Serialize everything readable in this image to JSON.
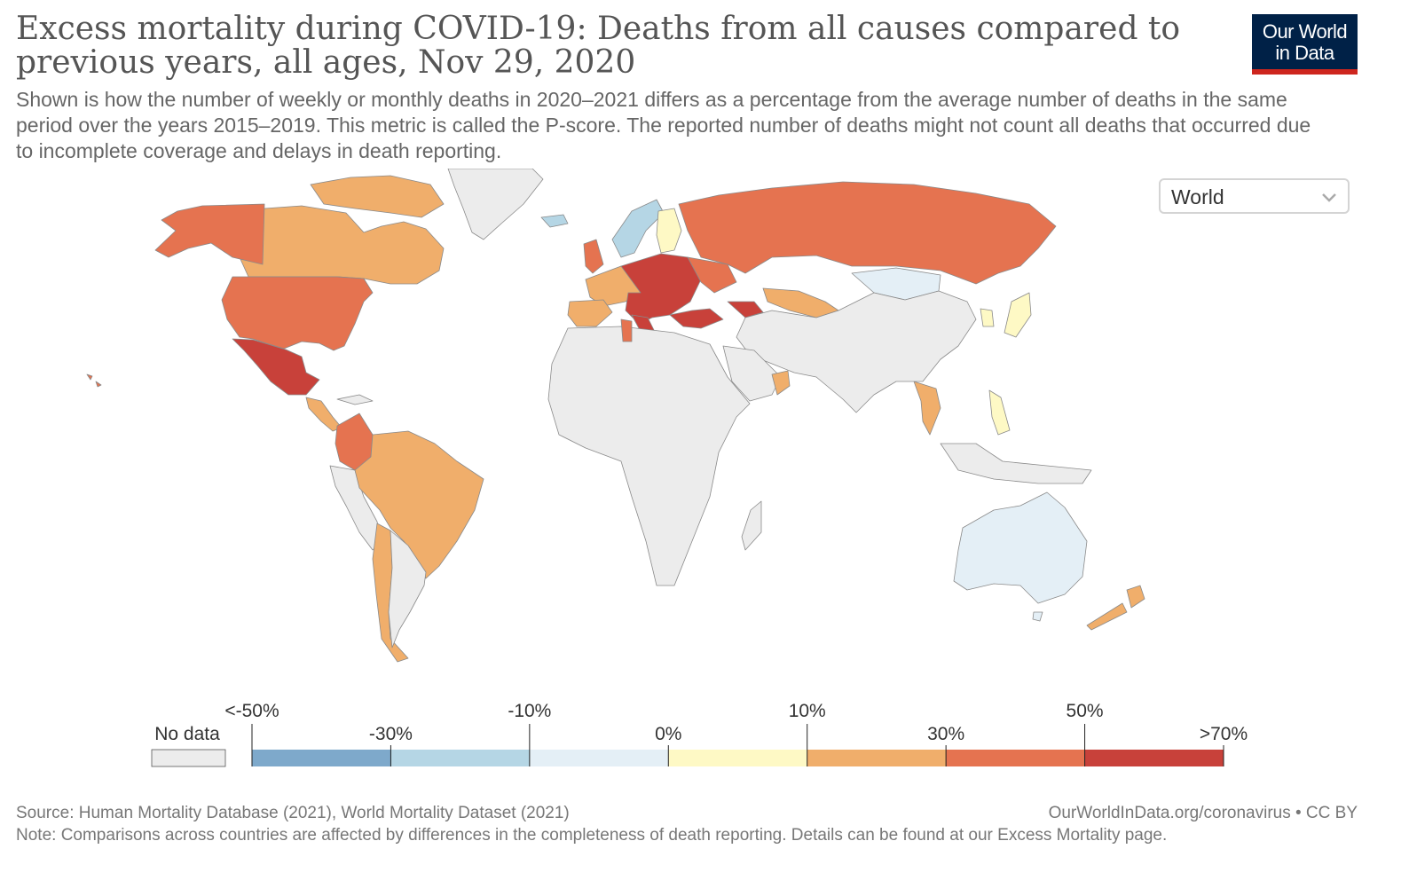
{
  "chart": {
    "title": "Excess mortality during COVID-19: Deaths from all causes compared to previous years, all ages, Nov 29, 2020",
    "subtitle": "Shown is how the number of weekly or monthly deaths in 2020–2021 differs as a percentage from the average number of deaths in the same period over the years 2015–2019. This metric is called the P-score. The reported number of deaths might not count all deaths that occurred due to incomplete coverage and delays in death reporting."
  },
  "logo": {
    "line1": "Our World",
    "line2": "in Data"
  },
  "region_selector": {
    "value": "World",
    "icon": "chevron-down-icon"
  },
  "legend": {
    "no_data_label": "No data",
    "bins": [
      {
        "label": "<-50%",
        "color": "#7ea9cb"
      },
      {
        "label": "-30%",
        "color": "#b5d6e5"
      },
      {
        "label": "-10%",
        "color": "#e4eff6"
      },
      {
        "label": "0%",
        "color": "#fef9c5"
      },
      {
        "label": "10%",
        "color": "#f0ae6b"
      },
      {
        "label": "30%",
        "color": "#e57350"
      },
      {
        "label": "50%",
        "color": "#c8413a"
      },
      {
        "label": ">70%",
        "color": ""
      }
    ],
    "no_data_color": "#ececec"
  },
  "chart_data": {
    "type": "choropleth",
    "date": "Nov 29, 2020",
    "metric": "P-score (%)",
    "categories": [
      "<-50%",
      "-50% to -30%",
      "-30% to -10%",
      "-10% to 0%",
      "0% to 10%",
      "10% to 30%",
      "30% to 50%",
      ">50%"
    ],
    "regions": [
      {
        "name": "Canada",
        "bin": "10% to 30%"
      },
      {
        "name": "United States",
        "bin": "30% to 50%"
      },
      {
        "name": "Mexico",
        "bin": ">50%"
      },
      {
        "name": "Alaska",
        "bin": "30% to 50%"
      },
      {
        "name": "Colombia",
        "bin": "30% to 50%"
      },
      {
        "name": "Brazil",
        "bin": "10% to 30%"
      },
      {
        "name": "Peru",
        "bin": "10% to 30%"
      },
      {
        "name": "Chile",
        "bin": "10% to 30%"
      },
      {
        "name": "Russia",
        "bin": "30% to 50%"
      },
      {
        "name": "Central Europe",
        "bin": ">50%"
      },
      {
        "name": "Western Europe",
        "bin": "10% to 30%"
      },
      {
        "name": "Norway",
        "bin": "-30% to -10%"
      },
      {
        "name": "Finland",
        "bin": "0% to 10%"
      },
      {
        "name": "Iceland",
        "bin": "-30% to -10%"
      },
      {
        "name": "Kazakhstan",
        "bin": "10% to 30%"
      },
      {
        "name": "Mongolia",
        "bin": "-10% to 0%"
      },
      {
        "name": "Japan",
        "bin": "0% to 10%"
      },
      {
        "name": "Thailand",
        "bin": "10% to 30%"
      },
      {
        "name": "Philippines",
        "bin": "0% to 10%"
      },
      {
        "name": "Oman",
        "bin": "10% to 30%"
      },
      {
        "name": "Australia",
        "bin": "-10% to 0%"
      },
      {
        "name": "New Zealand",
        "bin": "10% to 30%"
      },
      {
        "name": "Greenland",
        "bin": "No data"
      },
      {
        "name": "Africa",
        "bin": "No data"
      }
    ]
  },
  "footer": {
    "source": "Source: Human Mortality Database (2021), World Mortality Dataset (2021)",
    "url": "OurWorldInData.org/coronavirus • CC BY",
    "note": "Note: Comparisons across countries are affected by differences in the completeness of death reporting. Details can be found at our Excess Mortality page."
  }
}
